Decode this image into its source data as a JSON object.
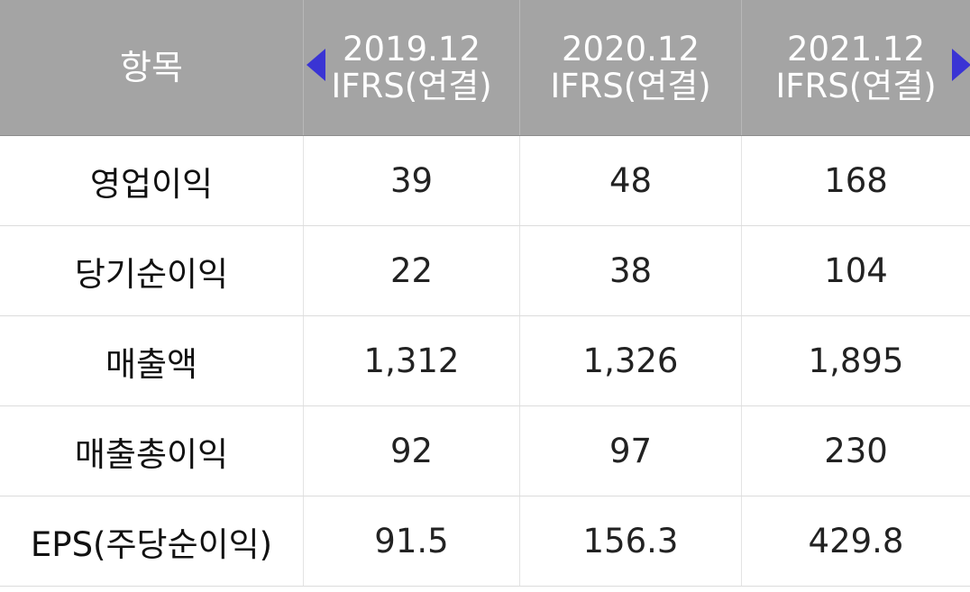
{
  "header": {
    "item_label": "항목",
    "periods": [
      {
        "year": "2019.12",
        "basis": "IFRS(연결)"
      },
      {
        "year": "2020.12",
        "basis": "IFRS(연결)"
      },
      {
        "year": "2021.12",
        "basis": "IFRS(연결)"
      }
    ]
  },
  "rows": [
    {
      "label": "영업이익",
      "values": [
        "39",
        "48",
        "168"
      ]
    },
    {
      "label": "당기순이익",
      "values": [
        "22",
        "38",
        "104"
      ]
    },
    {
      "label": "매출액",
      "values": [
        "1,312",
        "1,326",
        "1,895"
      ]
    },
    {
      "label": "매출총이익",
      "values": [
        "92",
        "97",
        "230"
      ]
    },
    {
      "label": "EPS(주당순이익)",
      "values": [
        "91.5",
        "156.3",
        "429.8"
      ]
    }
  ],
  "icons": {
    "prev": "triangle-left-icon",
    "next": "triangle-right-icon",
    "accent": "#3a34d4"
  }
}
